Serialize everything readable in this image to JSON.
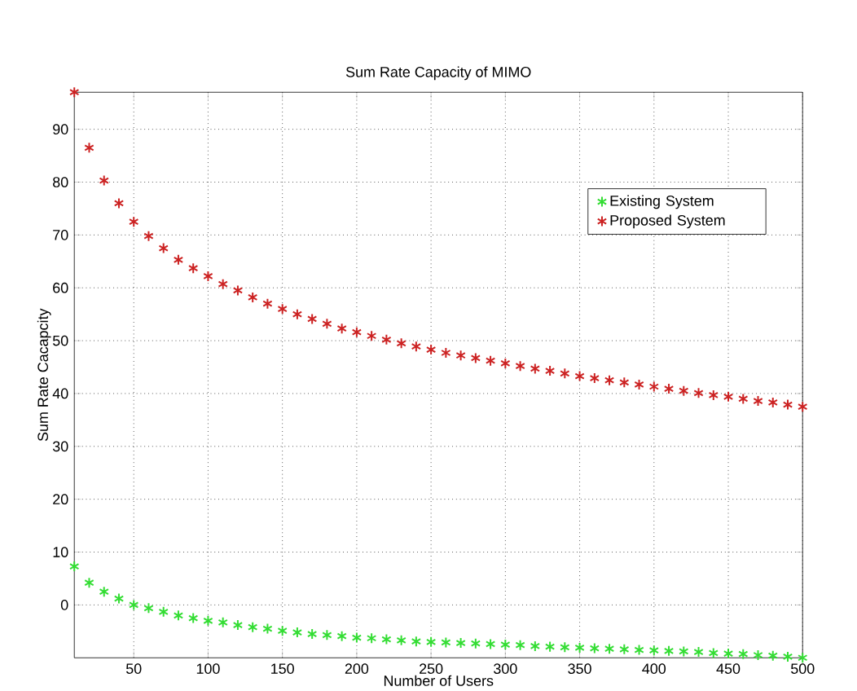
{
  "chart_data": {
    "type": "scatter",
    "title": "Sum Rate Capacity of MIMO",
    "xlabel": "Number of Users",
    "ylabel": "Sum Rate Cacapcity",
    "x": [
      10,
      20,
      30,
      40,
      50,
      60,
      70,
      80,
      90,
      100,
      110,
      120,
      130,
      140,
      150,
      160,
      170,
      180,
      190,
      200,
      210,
      220,
      230,
      240,
      250,
      260,
      270,
      280,
      290,
      300,
      310,
      320,
      330,
      340,
      350,
      360,
      370,
      380,
      390,
      400,
      410,
      420,
      430,
      440,
      450,
      460,
      470,
      480,
      490,
      500
    ],
    "series": [
      {
        "name": "Existing System",
        "color": "#33dd33",
        "values": [
          7.3,
          4.2,
          2.5,
          1.2,
          0,
          -0.6,
          -1.3,
          -2,
          -2.5,
          -3,
          -3.3,
          -3.8,
          -4.2,
          -4.5,
          -4.9,
          -5.2,
          -5.5,
          -5.7,
          -5.9,
          -6.2,
          -6.3,
          -6.5,
          -6.7,
          -6.9,
          -7,
          -7.1,
          -7.2,
          -7.3,
          -7.4,
          -7.5,
          -7.6,
          -7.8,
          -7.9,
          -8,
          -8.1,
          -8.2,
          -8.3,
          -8.4,
          -8.5,
          -8.6,
          -8.7,
          -8.8,
          -8.9,
          -9.1,
          -9.2,
          -9.3,
          -9.5,
          -9.6,
          -9.8,
          -10
        ]
      },
      {
        "name": "Proposed System",
        "color": "#cc2222",
        "values": [
          97,
          86.5,
          80.3,
          76,
          72.5,
          69.8,
          67.5,
          65.3,
          63.7,
          62.2,
          60.7,
          59.5,
          58.2,
          57,
          56,
          55,
          54.1,
          53.2,
          52.3,
          51.6,
          50.9,
          50.2,
          49.5,
          48.9,
          48.3,
          47.7,
          47.2,
          46.7,
          46.2,
          45.7,
          45.2,
          44.7,
          44.3,
          43.8,
          43.3,
          42.9,
          42.5,
          42.1,
          41.7,
          41.3,
          40.9,
          40.5,
          40.1,
          39.7,
          39.4,
          39,
          38.6,
          38.3,
          37.9,
          37.5
        ]
      }
    ],
    "xlim": [
      10,
      500
    ],
    "ylim": [
      -10,
      97
    ],
    "xticks": [
      50,
      100,
      150,
      200,
      250,
      300,
      350,
      400,
      450,
      500
    ],
    "yticks": [
      0,
      10,
      20,
      30,
      40,
      50,
      60,
      70,
      80,
      90
    ],
    "grid": true,
    "legend": "top right",
    "marker": "cross"
  }
}
